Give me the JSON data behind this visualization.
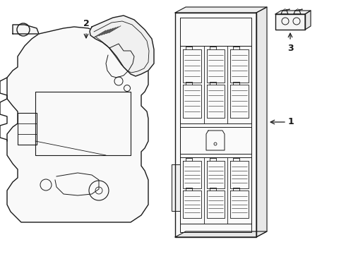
{
  "background_color": "#ffffff",
  "line_color": "#1a1a1a",
  "line_width": 1.0,
  "label_1": "1",
  "label_2": "2",
  "label_3": "3",
  "fig_width": 4.9,
  "fig_height": 3.6,
  "dpi": 100
}
